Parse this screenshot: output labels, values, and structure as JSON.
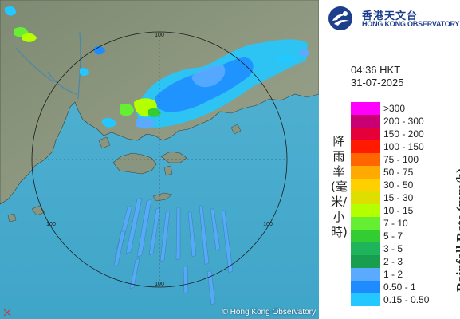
{
  "header": {
    "logo_chinese": "香港天文台",
    "logo_english": "HONG KONG OBSERVATORY"
  },
  "timestamp": {
    "time": "04:36 HKT",
    "date": "31-07-2025"
  },
  "legend": {
    "title_chinese": "降雨率(毫米/小時)",
    "title_english": "Rainfall Rate (mm/h)",
    "items": [
      {
        "label": ">300",
        "color": "#ff00ff"
      },
      {
        "label": "200 - 300",
        "color": "#c80074"
      },
      {
        "label": "150 - 200",
        "color": "#e6003a"
      },
      {
        "label": "100 - 150",
        "color": "#ff1a00"
      },
      {
        "label": "75 - 100",
        "color": "#ff6600"
      },
      {
        "label": "50 - 75",
        "color": "#ffaa00"
      },
      {
        "label": "30 - 50",
        "color": "#ffd000"
      },
      {
        "label": "15 - 30",
        "color": "#dede00"
      },
      {
        "label": "10 - 15",
        "color": "#b4ff00"
      },
      {
        "label": "7 - 10",
        "color": "#66ee33"
      },
      {
        "label": "5 - 7",
        "color": "#33cc33"
      },
      {
        "label": "3 - 5",
        "color": "#1db45c"
      },
      {
        "label": "2 - 3",
        "color": "#189e4e"
      },
      {
        "label": "1 - 2",
        "color": "#5aaaff"
      },
      {
        "label": "0.50 - 1",
        "color": "#1e8cff"
      },
      {
        "label": "0.15 - 0.50",
        "color": "#22c8ff"
      }
    ]
  },
  "map": {
    "range_rings": [
      {
        "label": "100"
      },
      {
        "label": "100"
      },
      {
        "label": "100"
      },
      {
        "label": "100"
      }
    ],
    "copyright": "© Hong Kong Observatory"
  }
}
